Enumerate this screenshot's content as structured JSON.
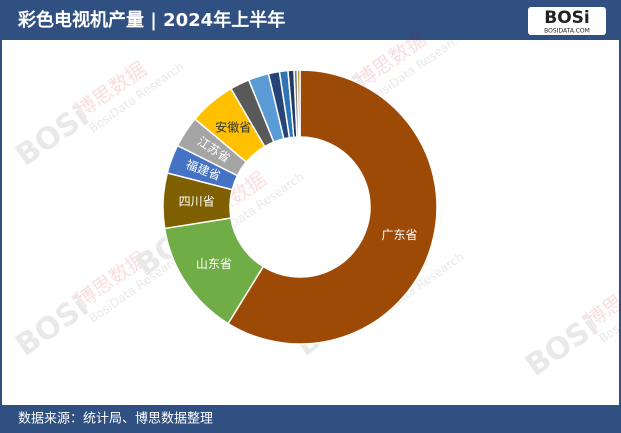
{
  "header": {
    "title": "彩色电视机产量 | 2024年上半年",
    "logo": "BOSi",
    "logo_sub": "BOSIDATA.COM"
  },
  "watermark": {
    "brand": "BOSi",
    "cn": "博思数据",
    "en": "BosiData Research"
  },
  "chart_data": {
    "type": "donut",
    "categories": [
      "广东省",
      "山东省",
      "四川省",
      "福建省",
      "江苏省",
      "安徽省",
      null,
      null,
      null,
      null,
      null,
      null,
      null
    ],
    "values": [
      58.8,
      13.7,
      6.5,
      3.4,
      3.7,
      5.5,
      2.3,
      2.4,
      1.3,
      1.0,
      0.7,
      0.4,
      0.3
    ],
    "colors": [
      "#9e4a07",
      "#70ad47",
      "#7f6000",
      "#4472c4",
      "#a5a5a5",
      "#ffc000",
      "#595959",
      "#5b9bd5",
      "#264478",
      "#2e75b6",
      "#1f3864",
      "#7f7f7f",
      "#997300"
    ]
  },
  "footer": {
    "source": "数据来源：统计局、博思数据整理"
  }
}
